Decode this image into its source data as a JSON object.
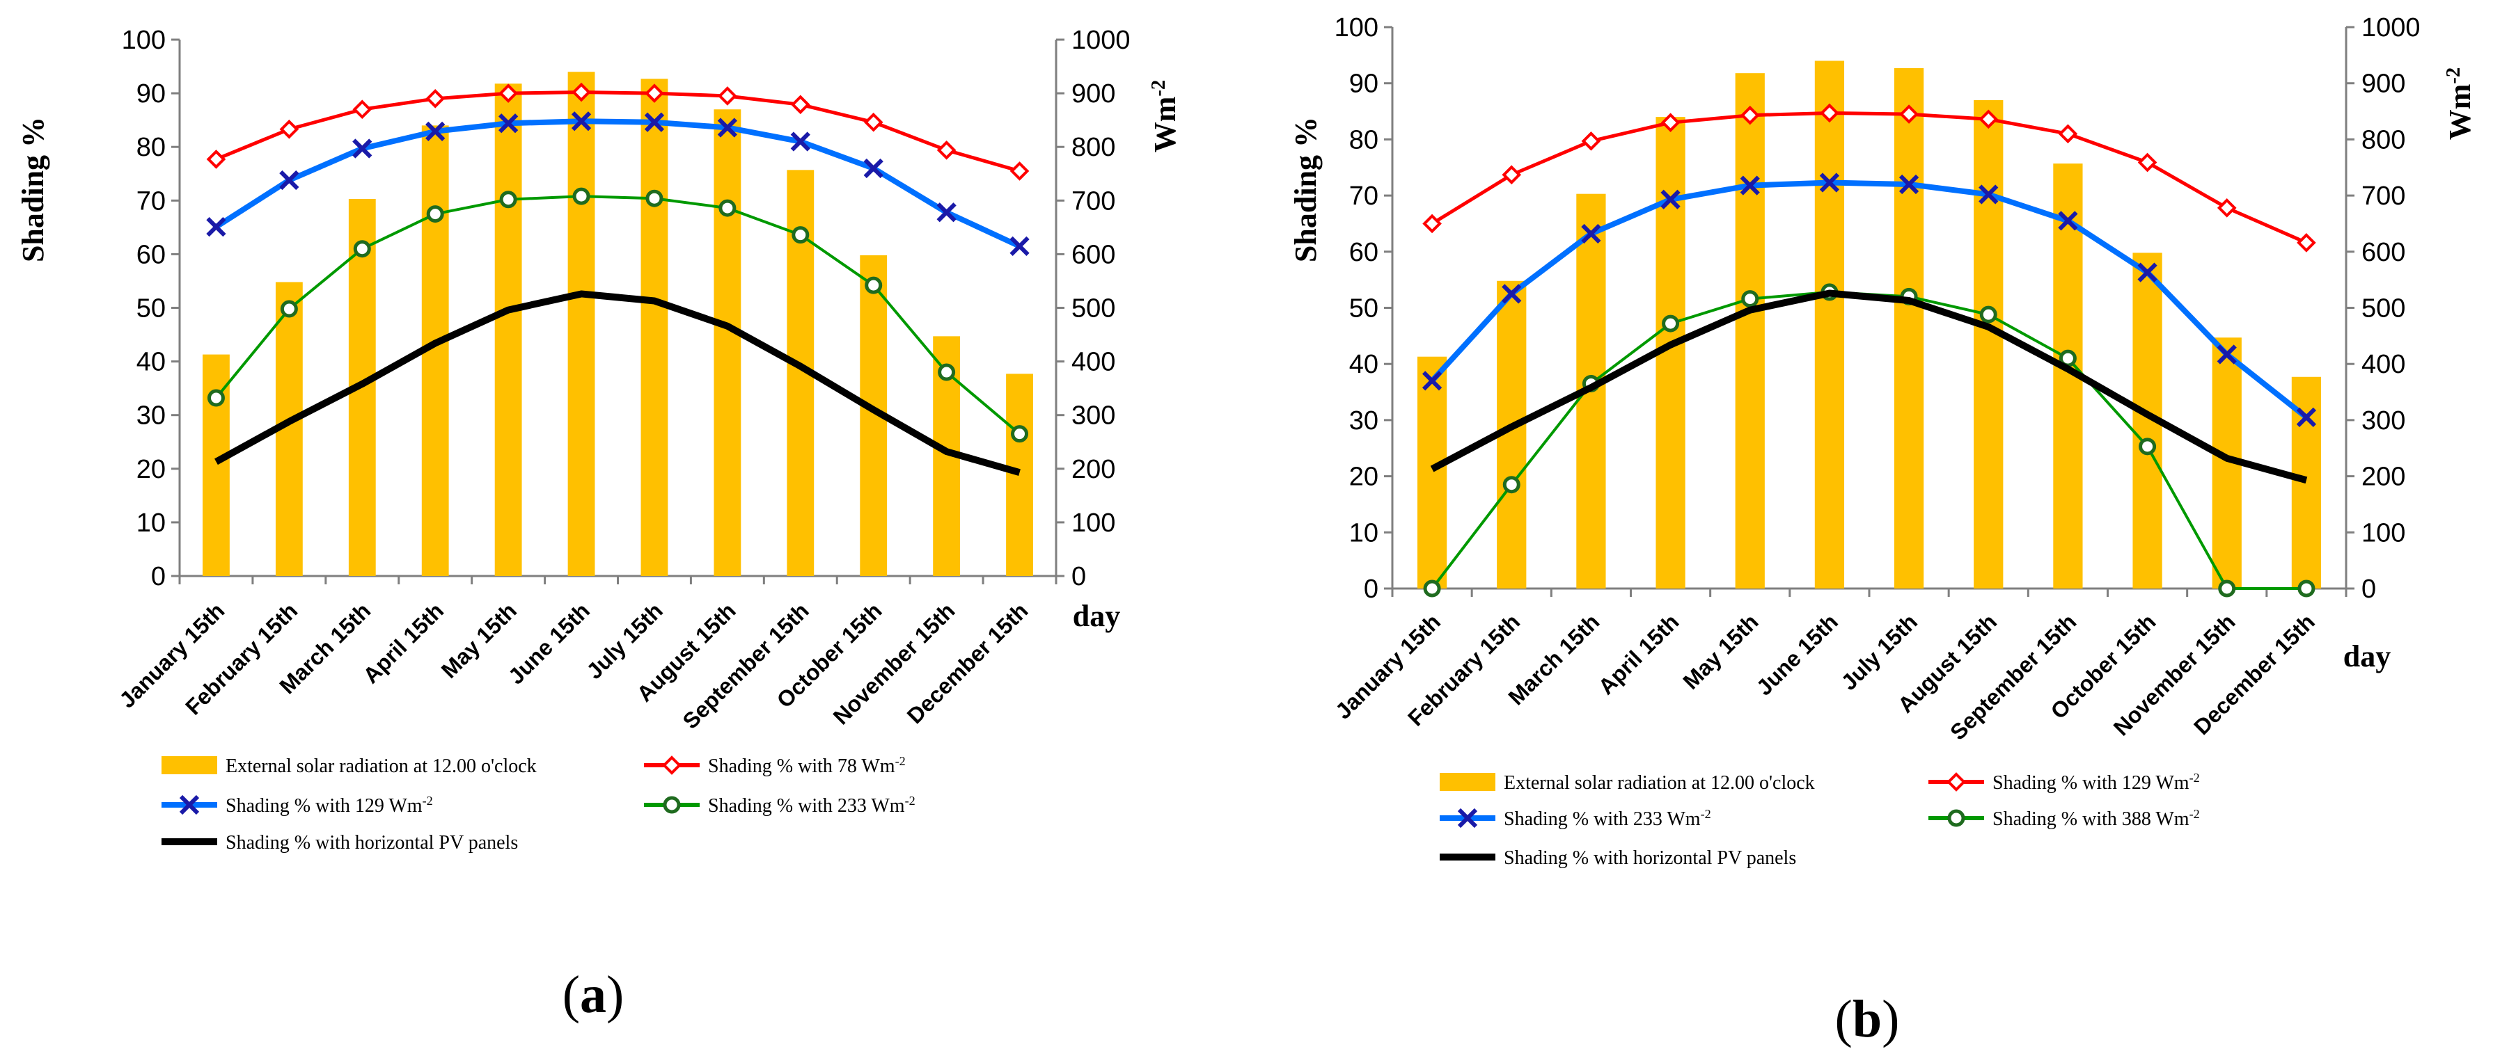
{
  "chart_data": [
    {
      "panel": "a",
      "type": "bar+line",
      "title": "",
      "ylabel_left": "Shading %",
      "ylabel_right": "Wm",
      "ylabel_right_sup": "-2",
      "xlabel": "day",
      "ylim_left": [
        0,
        100
      ],
      "ylim_right": [
        0,
        1000
      ],
      "yticks_left": [
        0,
        10,
        20,
        30,
        40,
        50,
        60,
        70,
        80,
        90,
        100
      ],
      "yticks_right": [
        0,
        100,
        200,
        300,
        400,
        500,
        600,
        700,
        800,
        900,
        1000
      ],
      "categories": [
        "January 15th",
        "February 15th",
        "March 15th",
        "April 15th",
        "May 15th",
        "June 15th",
        "July 15th",
        "August 15th",
        "September 15th",
        "October 15th",
        "November 15th",
        "December 15th"
      ],
      "bars": {
        "name": "External solar radiation at 12.00 o'clock",
        "axis": "right",
        "color": "#FFC000",
        "values": [
          413,
          548,
          703,
          840,
          918,
          940,
          927,
          870,
          757,
          598,
          447,
          377
        ]
      },
      "series": [
        {
          "name": "Shading % with 78  Wm",
          "name_sup": "-2",
          "color": "#FF0000",
          "marker": "diamond",
          "width": 5,
          "values": [
            77.7,
            83.3,
            87.0,
            89.0,
            90.0,
            90.2,
            90.0,
            89.5,
            87.9,
            84.6,
            79.4,
            75.5
          ]
        },
        {
          "name": "Shading % with 129  Wm",
          "name_sup": "-2",
          "color": "#0070FF",
          "marker": "x",
          "width": 8,
          "values": [
            65.1,
            73.8,
            79.7,
            82.9,
            84.4,
            84.8,
            84.6,
            83.6,
            81.0,
            76.0,
            67.8,
            61.5
          ]
        },
        {
          "name": "Shading % with 233  Wm",
          "name_sup": "-2",
          "color": "#009900",
          "marker": "circle",
          "width": 4,
          "values": [
            33.2,
            49.8,
            61.0,
            67.5,
            70.2,
            70.8,
            70.4,
            68.6,
            63.6,
            54.2,
            38.0,
            26.5
          ]
        },
        {
          "name": "Shading % with horizontal PV panels",
          "name_sup": "",
          "color": "#000000",
          "marker": "none",
          "width": 10,
          "values": [
            21.3,
            28.8,
            35.8,
            43.4,
            49.6,
            52.6,
            51.3,
            46.6,
            39.1,
            31.0,
            23.2,
            19.3
          ]
        }
      ]
    },
    {
      "panel": "b",
      "type": "bar+line",
      "title": "",
      "ylabel_left": "Shading %",
      "ylabel_right": "Wm",
      "ylabel_right_sup": "-2",
      "xlabel": "day",
      "ylim_left": [
        0,
        100
      ],
      "ylim_right": [
        0,
        1000
      ],
      "yticks_left": [
        0,
        10,
        20,
        30,
        40,
        50,
        60,
        70,
        80,
        90,
        100
      ],
      "yticks_right": [
        0,
        100,
        200,
        300,
        400,
        500,
        600,
        700,
        800,
        900,
        1000
      ],
      "categories": [
        "January 15th",
        "February 15th",
        "March 15th",
        "April 15th",
        "May 15th",
        "June 15th",
        "July 15th",
        "August 15th",
        "September 15th",
        "October 15th",
        "November 15th",
        "December 15th"
      ],
      "bars": {
        "name": "External solar radiation at 12.00 o'clock",
        "axis": "right",
        "color": "#FFC000",
        "values": [
          413,
          548,
          703,
          840,
          918,
          940,
          927,
          870,
          757,
          598,
          447,
          377
        ]
      },
      "series": [
        {
          "name": "Shading % with 129  Wm",
          "name_sup": "-2",
          "color": "#FF0000",
          "marker": "diamond",
          "width": 5,
          "values": [
            65.0,
            73.7,
            79.7,
            83.0,
            84.3,
            84.7,
            84.5,
            83.6,
            81.0,
            75.9,
            67.8,
            61.6
          ]
        },
        {
          "name": "Shading % with 233  Wm",
          "name_sup": "-2",
          "color": "#0070FF",
          "marker": "x",
          "width": 8,
          "values": [
            37.0,
            52.5,
            63.2,
            69.3,
            71.8,
            72.3,
            72.0,
            70.2,
            65.5,
            56.3,
            41.7,
            30.5
          ]
        },
        {
          "name": "Shading % with 388  Wm",
          "name_sup": "-2",
          "color": "#009900",
          "marker": "circle",
          "width": 4,
          "values": [
            0.0,
            18.5,
            36.5,
            47.2,
            51.6,
            52.8,
            52.0,
            48.8,
            41.0,
            25.3,
            0.0,
            0.0
          ]
        },
        {
          "name": "Shading % with horizontal PV panels",
          "name_sup": "",
          "color": "#000000",
          "marker": "none",
          "width": 10,
          "values": [
            21.3,
            28.8,
            35.8,
            43.4,
            49.6,
            52.6,
            51.3,
            46.6,
            39.1,
            31.0,
            23.2,
            19.3
          ]
        }
      ]
    }
  ],
  "panel_labels": [
    {
      "open": "(",
      "letter": "a",
      "close": ")"
    },
    {
      "open": "(",
      "letter": "b",
      "close": ")"
    }
  ]
}
